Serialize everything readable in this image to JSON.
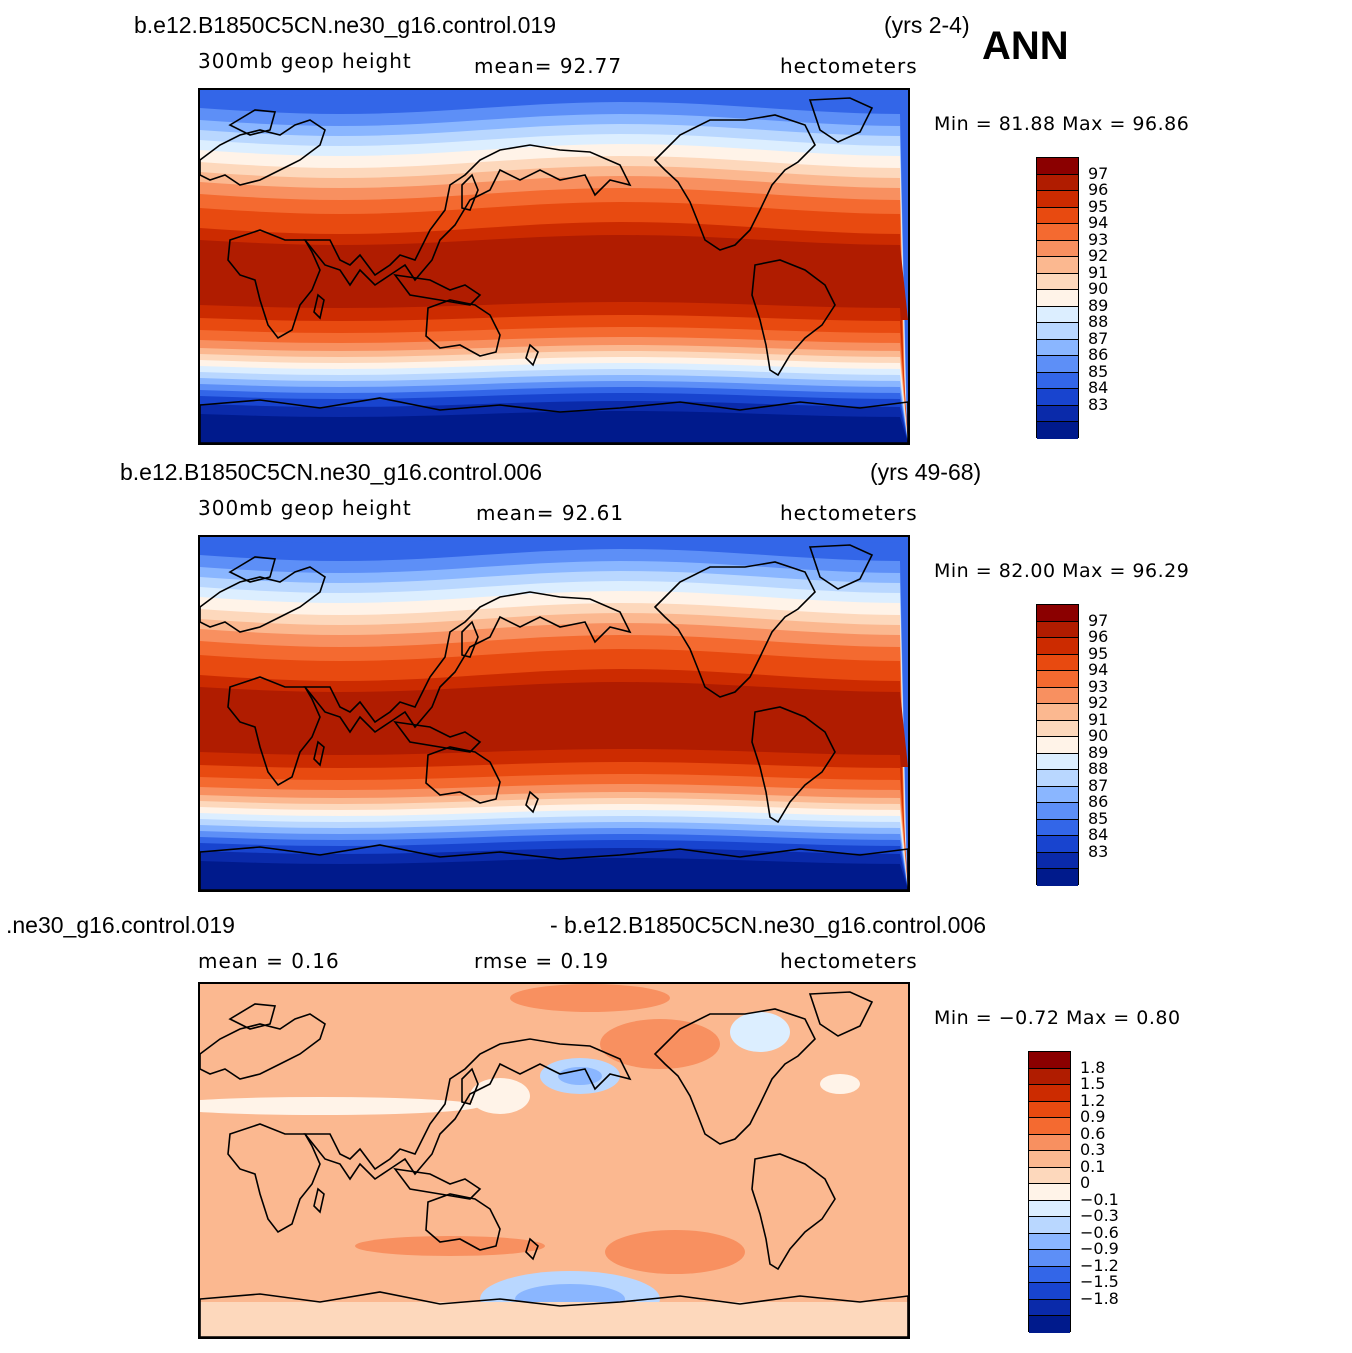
{
  "season": "ANN",
  "panels": [
    {
      "case": "b.e12.B1850C5CN.ne30_g16.control.019",
      "years": "(yrs 2-4)",
      "variable": "300mb  geop  height",
      "mean_label": "mean=   92.77",
      "units": "hectometers",
      "minmax": "Min =   81.88  Max =    96.86",
      "levels": [
        "97",
        "96",
        "95",
        "94",
        "93",
        "92",
        "91",
        "90",
        "89",
        "88",
        "87",
        "86",
        "85",
        "84",
        "83"
      ],
      "colors": [
        "#8b0000",
        "#b01c00",
        "#cc2b00",
        "#e84a10",
        "#f46a30",
        "#f89060",
        "#fbb890",
        "#fdd8bc",
        "#fff3e8",
        "#dceeff",
        "#b9d7ff",
        "#8ab6ff",
        "#5d8ff7",
        "#3366e8",
        "#1844cf",
        "#0a2aaa",
        "#001a8c"
      ]
    },
    {
      "case": "b.e12.B1850C5CN.ne30_g16.control.006",
      "years": "(yrs 49-68)",
      "variable": "300mb  geop  height",
      "mean_label": "mean=   92.61",
      "units": "hectometers",
      "minmax": "Min =   82.00  Max =    96.29",
      "levels": [
        "97",
        "96",
        "95",
        "94",
        "93",
        "92",
        "91",
        "90",
        "89",
        "88",
        "87",
        "86",
        "85",
        "84",
        "83"
      ],
      "colors": [
        "#8b0000",
        "#b01c00",
        "#cc2b00",
        "#e84a10",
        "#f46a30",
        "#f89060",
        "#fbb890",
        "#fdd8bc",
        "#fff3e8",
        "#dceeff",
        "#b9d7ff",
        "#8ab6ff",
        "#5d8ff7",
        "#3366e8",
        "#1844cf",
        "#0a2aaa",
        "#001a8c"
      ]
    },
    {
      "case_left": ".ne30_g16.control.019",
      "case_right": "- b.e12.B1850C5CN.ne30_g16.control.006",
      "mean_label": "mean =     0.16",
      "rmse_label": "rmse =     0.19",
      "units": "hectometers",
      "minmax": "Min =   −0.72  Max =     0.80",
      "levels": [
        "1.8",
        "1.5",
        "1.2",
        "0.9",
        "0.6",
        "0.3",
        "0.1",
        "0",
        "−0.1",
        "−0.3",
        "−0.6",
        "−0.9",
        "−1.2",
        "−1.5",
        "−1.8"
      ],
      "colors": [
        "#8b0000",
        "#b01c00",
        "#cc2b00",
        "#e84a10",
        "#f46a30",
        "#f89060",
        "#fbb890",
        "#fdd8bc",
        "#fff3e8",
        "#dceeff",
        "#b9d7ff",
        "#8ab6ff",
        "#5d8ff7",
        "#3366e8",
        "#1844cf",
        "#0a2aaa",
        "#001a8c"
      ]
    }
  ]
}
